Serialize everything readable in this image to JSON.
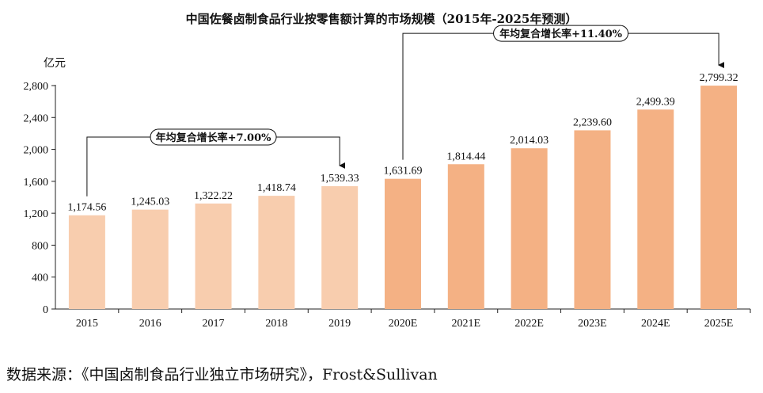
{
  "chart_data": {
    "type": "bar",
    "title": "中国佐餐卤制食品行业按零售额计算的市场规模（2015年-2025年预测）",
    "ylabel": "亿元",
    "ylim": [
      0,
      2800
    ],
    "yticks": [
      "0",
      "400",
      "800",
      "1,200",
      "1,600",
      "2,000",
      "2,400",
      "2,800"
    ],
    "categories": [
      "2015",
      "2016",
      "2017",
      "2018",
      "2019",
      "2020E",
      "2021E",
      "2022E",
      "2023E",
      "2024E",
      "2025E"
    ],
    "values": [
      1174.56,
      1245.03,
      1322.22,
      1418.74,
      1539.33,
      1631.69,
      1814.44,
      2014.03,
      2239.6,
      2499.39,
      2799.32
    ],
    "value_labels": [
      "1,174.56",
      "1,245.03",
      "1,322.22",
      "1,418.74",
      "1,539.33",
      "1,631.69",
      "1,814.44",
      "2,014.03",
      "2,239.60",
      "2,499.39",
      "2,799.32"
    ],
    "colors": {
      "historical": "#F8CDAE",
      "forecast": "#F4B184"
    },
    "annotations": [
      {
        "text": "年均复合增长率+7.00%",
        "from": "2015",
        "to": "2019"
      },
      {
        "text": "年均复合增长率+11.40%",
        "from": "2020E",
        "to": "2025E"
      }
    ],
    "grid": false,
    "legend": "none"
  },
  "source": "数据来源：《中国卤制食品行业独立市场研究》，Frost&Sullivan"
}
